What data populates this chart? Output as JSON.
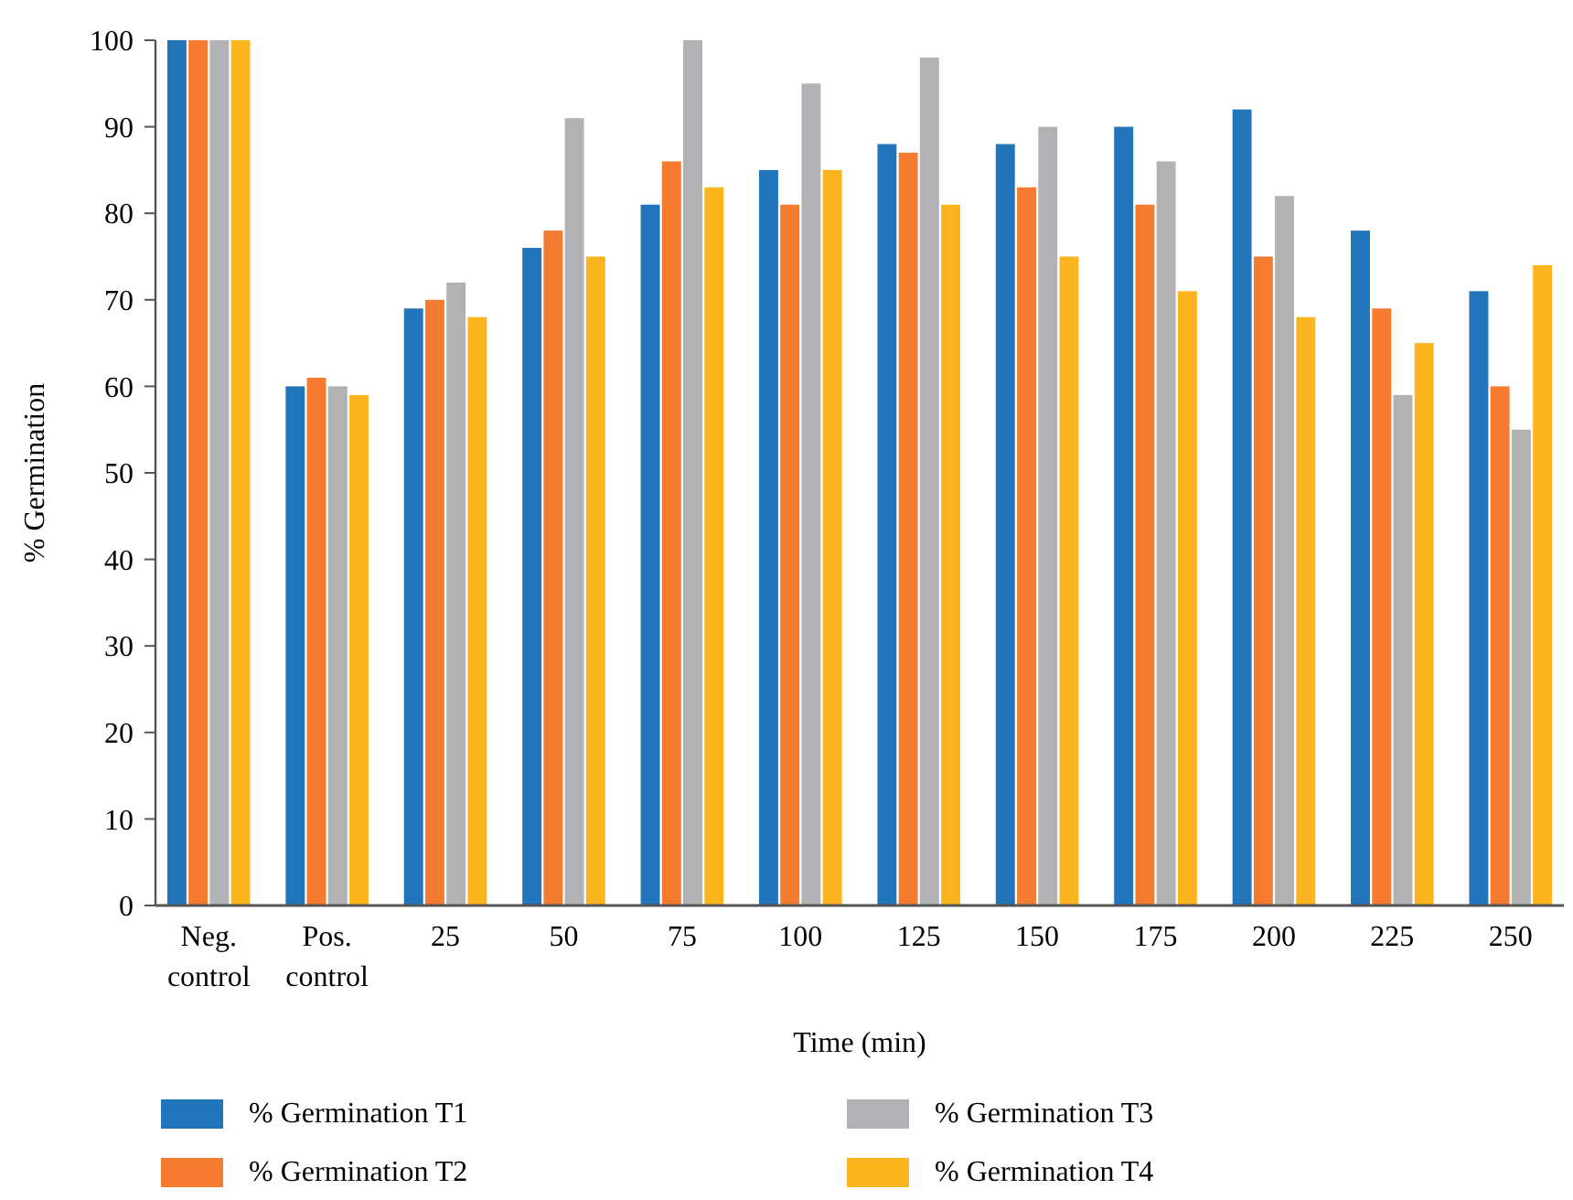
{
  "chart_data": {
    "type": "bar",
    "xlabel": "Time (min)",
    "ylabel": "% Germination",
    "categories": [
      "Neg. control",
      "Pos. control",
      "25",
      "50",
      "75",
      "100",
      "125",
      "150",
      "175",
      "200",
      "225",
      "250"
    ],
    "series": [
      {
        "name": "% Germination T1",
        "color": "#2274bb",
        "values": [
          100,
          60,
          69,
          76,
          81,
          85,
          88,
          88,
          90,
          92,
          78,
          71
        ]
      },
      {
        "name": "% Germination T2",
        "color": "#f47b30",
        "values": [
          100,
          61,
          70,
          78,
          86,
          81,
          87,
          83,
          81,
          75,
          69,
          60
        ]
      },
      {
        "name": "% Germination T3",
        "color": "#b2b2b4",
        "values": [
          100,
          60,
          72,
          91,
          100,
          95,
          98,
          90,
          86,
          82,
          59,
          55
        ]
      },
      {
        "name": "% Germination T4",
        "color": "#fcb51f",
        "values": [
          100,
          59,
          68,
          75,
          83,
          85,
          81,
          75,
          71,
          68,
          65,
          74
        ]
      }
    ],
    "ylim": [
      0,
      100
    ],
    "yticks": [
      0,
      10,
      20,
      30,
      40,
      50,
      60,
      70,
      80,
      90,
      100
    ],
    "grid": false,
    "legend": "bottom"
  }
}
